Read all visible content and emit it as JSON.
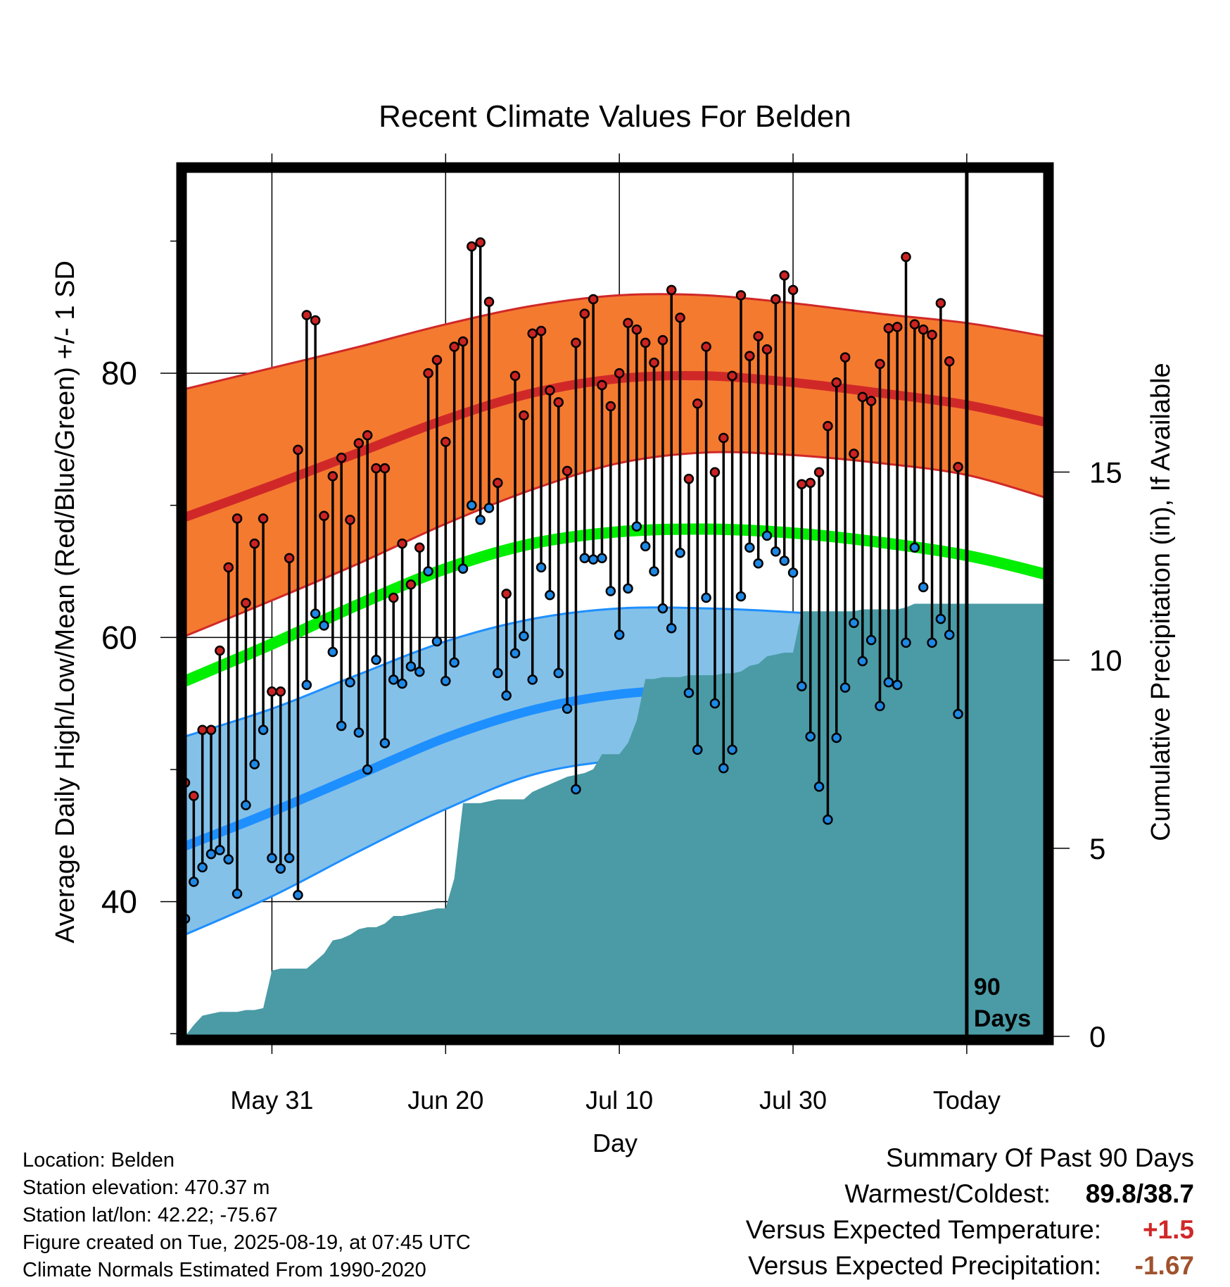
{
  "chart_data": {
    "type": "line",
    "title": "Recent Climate Values For Belden",
    "xlabel": "Day",
    "ylabel": "Average Daily High/Low/Mean (Red/Blue/Green) +/- 1 SD",
    "y2label": "Cumulative Precipitation (in), If Available",
    "xlim": [
      1,
      100
    ],
    "ylim": [
      29.8,
      95.3
    ],
    "y2lim": [
      0,
      23
    ],
    "x_ticks": [
      {
        "x": 11,
        "label": "May 31"
      },
      {
        "x": 31,
        "label": "Jun 20"
      },
      {
        "x": 51,
        "label": "Jul 10"
      },
      {
        "x": 71,
        "label": "Jul 30"
      },
      {
        "x": 91,
        "label": "Today"
      }
    ],
    "y_ticks": [
      40,
      60,
      80
    ],
    "y2_ticks": [
      0,
      5,
      10,
      15
    ],
    "today_x": 91,
    "period_label": [
      "90",
      "Days"
    ],
    "colors": {
      "high_band": "#f47a30",
      "high_mean": "#d02828",
      "high_edge": "#d02828",
      "low_band": "#84c1e8",
      "low_mean": "#1e8fff",
      "low_edge": "#1e8fff",
      "avg_mean": "#00ee00",
      "precip": "#4a9ba6",
      "daily_high_dot": "#cc2222",
      "daily_low_dot": "#1e88e5"
    },
    "normals": {
      "x": [
        1,
        11,
        21,
        31,
        41,
        51,
        61,
        71,
        81,
        91,
        100
      ],
      "high_upper": [
        78.8,
        80.4,
        82.0,
        83.7,
        85.1,
        85.9,
        85.9,
        85.3,
        84.5,
        83.8,
        82.8
      ],
      "high_mean": [
        69.1,
        71.5,
        74.0,
        76.5,
        78.5,
        79.6,
        79.8,
        79.3,
        78.5,
        77.6,
        76.3
      ],
      "high_lower": [
        60.1,
        62.8,
        65.6,
        68.6,
        71.2,
        73.2,
        74.0,
        73.8,
        73.2,
        72.3,
        70.6
      ],
      "avg_mean": [
        56.7,
        59.5,
        62.5,
        65.2,
        67.1,
        68.0,
        68.2,
        67.9,
        67.2,
        66.2,
        64.8
      ],
      "low_upper": [
        52.5,
        54.6,
        57.2,
        59.7,
        61.4,
        62.2,
        62.2,
        61.9,
        61.4,
        60.6,
        59.4
      ],
      "low_mean": [
        44.2,
        46.8,
        49.6,
        52.4,
        54.5,
        55.7,
        56.0,
        55.8,
        55.2,
        54.3,
        52.8
      ],
      "low_lower": [
        37.5,
        40.4,
        43.8,
        47.0,
        49.6,
        50.7,
        51.0,
        50.8,
        50.0,
        48.9,
        46.9
      ]
    },
    "series": [
      {
        "name": "Daily High",
        "x": [
          1,
          2,
          3,
          4,
          5,
          6,
          7,
          8,
          9,
          10,
          11,
          12,
          13,
          14,
          15,
          16,
          17,
          18,
          19,
          20,
          21,
          22,
          23,
          24,
          25,
          26,
          27,
          28,
          29,
          30,
          31,
          32,
          33,
          34,
          35,
          36,
          37,
          38,
          39,
          40,
          41,
          42,
          43,
          44,
          45,
          46,
          47,
          48,
          49,
          50,
          51,
          52,
          53,
          54,
          55,
          56,
          57,
          58,
          59,
          60,
          61,
          62,
          63,
          64,
          65,
          66,
          67,
          68,
          69,
          70,
          71,
          72,
          73,
          74,
          75,
          76,
          77,
          78,
          79,
          80,
          81,
          82,
          83,
          84,
          85,
          86,
          87,
          88,
          89,
          90
        ],
        "values": [
          49.0,
          48.0,
          53.0,
          53.0,
          59.0,
          65.3,
          69.0,
          62.6,
          67.1,
          69.0,
          55.9,
          55.9,
          66.0,
          74.2,
          84.4,
          84.0,
          69.2,
          72.2,
          73.6,
          68.9,
          74.7,
          75.3,
          72.8,
          72.8,
          63.0,
          67.1,
          64.0,
          66.8,
          80.0,
          81.0,
          74.8,
          82.0,
          82.4,
          89.6,
          89.9,
          85.4,
          71.7,
          63.3,
          79.8,
          76.8,
          83.0,
          83.2,
          78.7,
          77.8,
          72.6,
          82.3,
          84.5,
          85.6,
          79.1,
          77.5,
          80.0,
          83.8,
          83.3,
          82.3,
          80.8,
          82.5,
          86.3,
          84.2,
          72.0,
          77.7,
          82.0,
          72.5,
          75.1,
          79.8,
          85.9,
          81.3,
          82.8,
          81.8,
          85.6,
          87.4,
          86.3,
          71.6,
          71.7,
          72.5,
          76.0,
          79.3,
          81.2,
          73.9,
          78.2,
          77.9,
          80.7,
          83.4,
          83.5,
          88.8,
          83.7,
          83.3,
          82.9,
          85.3,
          80.9,
          72.9
        ]
      },
      {
        "name": "Daily Low",
        "x": [
          1,
          2,
          3,
          4,
          5,
          6,
          7,
          8,
          9,
          10,
          11,
          12,
          13,
          14,
          15,
          16,
          17,
          18,
          19,
          20,
          21,
          22,
          23,
          24,
          25,
          26,
          27,
          28,
          29,
          30,
          31,
          32,
          33,
          34,
          35,
          36,
          37,
          38,
          39,
          40,
          41,
          42,
          43,
          44,
          45,
          46,
          47,
          48,
          49,
          50,
          51,
          52,
          53,
          54,
          55,
          56,
          57,
          58,
          59,
          60,
          61,
          62,
          63,
          64,
          65,
          66,
          67,
          68,
          69,
          70,
          71,
          72,
          73,
          74,
          75,
          76,
          77,
          78,
          79,
          80,
          81,
          82,
          83,
          84,
          85,
          86,
          87,
          88,
          89,
          90
        ],
        "values": [
          38.7,
          41.5,
          42.6,
          43.6,
          43.9,
          43.2,
          40.6,
          47.3,
          50.4,
          53.0,
          43.3,
          42.5,
          43.3,
          40.5,
          56.4,
          61.8,
          60.9,
          58.9,
          53.3,
          56.6,
          52.8,
          50.0,
          58.3,
          52.0,
          56.8,
          56.5,
          57.8,
          57.4,
          65.0,
          59.7,
          56.7,
          58.1,
          65.2,
          70.0,
          68.9,
          69.8,
          57.3,
          55.6,
          58.8,
          60.1,
          56.8,
          65.3,
          63.2,
          57.3,
          54.6,
          48.5,
          66.0,
          65.9,
          66.0,
          63.5,
          60.2,
          63.7,
          68.4,
          66.9,
          65.0,
          62.2,
          60.7,
          66.4,
          55.8,
          51.5,
          63.0,
          55.0,
          50.1,
          51.5,
          63.1,
          66.8,
          65.6,
          67.7,
          66.5,
          65.8,
          64.9,
          56.3,
          52.5,
          48.7,
          46.2,
          52.4,
          56.2,
          61.1,
          58.2,
          59.8,
          54.8,
          56.6,
          56.4,
          59.6,
          66.8,
          63.8,
          59.6,
          61.4,
          60.2,
          54.2
        ]
      },
      {
        "name": "Cumulative Precipitation",
        "x": [
          1,
          2,
          3,
          4,
          5,
          6,
          7,
          8,
          9,
          10,
          11,
          12,
          13,
          14,
          15,
          16,
          17,
          18,
          19,
          20,
          21,
          22,
          23,
          24,
          25,
          26,
          27,
          28,
          29,
          30,
          31,
          32,
          33,
          34,
          35,
          36,
          37,
          38,
          39,
          40,
          41,
          42,
          43,
          44,
          45,
          46,
          47,
          48,
          49,
          50,
          51,
          52,
          53,
          54,
          55,
          56,
          57,
          58,
          59,
          60,
          61,
          62,
          63,
          64,
          65,
          66,
          67,
          68,
          69,
          70,
          71,
          72,
          73,
          74,
          75,
          76,
          77,
          78,
          79,
          80,
          81,
          82,
          83,
          84,
          85,
          86,
          87,
          88,
          89,
          90,
          91,
          92,
          93,
          94,
          95,
          96,
          97,
          98,
          99,
          100
        ],
        "values": [
          0.0,
          0.3,
          0.55,
          0.6,
          0.65,
          0.65,
          0.65,
          0.7,
          0.7,
          0.75,
          1.75,
          1.8,
          1.8,
          1.8,
          1.8,
          2.0,
          2.2,
          2.55,
          2.6,
          2.7,
          2.85,
          2.9,
          2.9,
          3.0,
          3.2,
          3.2,
          3.25,
          3.3,
          3.35,
          3.4,
          3.4,
          4.2,
          6.2,
          6.2,
          6.2,
          6.25,
          6.3,
          6.3,
          6.3,
          6.3,
          6.5,
          6.6,
          6.7,
          6.8,
          6.9,
          6.95,
          7.0,
          7.1,
          7.5,
          7.5,
          7.5,
          7.8,
          8.4,
          9.5,
          9.5,
          9.55,
          9.55,
          9.55,
          9.6,
          9.6,
          9.6,
          9.6,
          9.65,
          9.65,
          9.7,
          9.85,
          9.9,
          10.1,
          10.15,
          10.2,
          10.2,
          11.3,
          11.3,
          11.3,
          11.3,
          11.3,
          11.3,
          11.3,
          11.35,
          11.35,
          11.35,
          11.35,
          11.35,
          11.4,
          11.5,
          11.5,
          11.5,
          11.5,
          11.5,
          11.5,
          11.5,
          11.5,
          11.5,
          11.5,
          11.5,
          11.5,
          11.5,
          11.5,
          11.5,
          11.5
        ]
      }
    ]
  },
  "footer_left": [
    "Location: Belden",
    "Station elevation: 470.37 m",
    "Station lat/lon: 42.22; -75.67",
    "Figure created on Tue, 2025-08-19, at 07:45 UTC",
    "Climate Normals Estimated From 1990-2020"
  ],
  "summary": {
    "heading": "Summary Of Past 90 Days",
    "warm_cold_label": "Warmest/Coldest:",
    "warm_cold_value": "89.8/38.7",
    "temp_label": "Versus Expected Temperature:",
    "temp_value": "+1.5",
    "temp_color": "#d02828",
    "precip_label": "Versus Expected Precipitation:",
    "precip_value": "-1.67",
    "precip_color": "#a0522d"
  }
}
